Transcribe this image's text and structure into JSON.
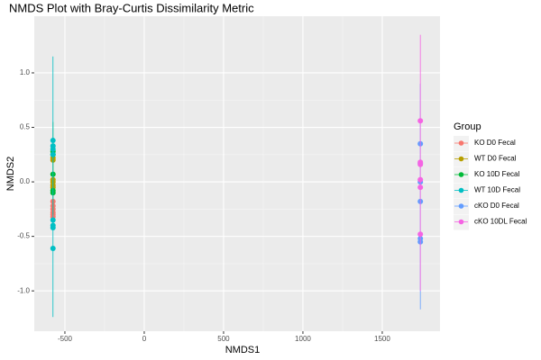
{
  "chart_data": {
    "type": "scatter",
    "title": "NMDS Plot with Bray-Curtis Dissimilarity Metric",
    "x_label": "NMDS1",
    "y_label": "NMDS2",
    "legend_title": "Group",
    "legend_position": "right",
    "grid": true,
    "xlim": [
      -693,
      1864
    ],
    "ylim": [
      -1.37,
      1.52
    ],
    "xticks": [
      -500,
      0,
      500,
      1000,
      1500
    ],
    "yticks": [
      {
        "value": -1,
        "label": "-1.0"
      },
      {
        "value": -0.5,
        "label": "-0.5"
      },
      {
        "value": 0,
        "label": "0.0"
      },
      {
        "value": 0.5,
        "label": "0.5"
      },
      {
        "value": 1,
        "label": "1.0"
      }
    ],
    "series": [
      {
        "name": "KO D0 Fecal",
        "color": "#F8766D",
        "x": [
          -575,
          -575,
          -575,
          -575,
          -575,
          -575
        ],
        "values": [
          -0.18,
          -0.22,
          -0.25,
          -0.28,
          -0.3,
          -0.32
        ],
        "ellipse_y": [
          -0.36,
          0.05
        ]
      },
      {
        "name": "WT D0 Fecal",
        "color": "#B79F00",
        "x": [
          -575,
          -575,
          -575,
          -575,
          -575,
          -575
        ],
        "values": [
          0.22,
          0.2,
          0.02,
          0,
          -0.03,
          -0.05
        ],
        "ellipse_y": [
          -0.1,
          0.3
        ]
      },
      {
        "name": "KO 10D Fecal",
        "color": "#00BA38",
        "x": [
          -575,
          -575,
          -575,
          -575,
          -575
        ],
        "values": [
          0.28,
          0.25,
          0.07,
          -0.08,
          -0.1
        ],
        "ellipse_y": [
          -0.3,
          0.55
        ]
      },
      {
        "name": "WT 10D Fecal",
        "color": "#00BFC4",
        "x": [
          -575,
          -575,
          -575,
          -575,
          -575,
          -575,
          -575,
          -575
        ],
        "values": [
          0.38,
          0.33,
          0.3,
          0.25,
          -0.35,
          -0.4,
          -0.42,
          -0.61
        ],
        "ellipse_y": [
          -1.24,
          1.15
        ]
      },
      {
        "name": "cKO D0 Fecal",
        "color": "#619CFF",
        "x": [
          1740,
          1740,
          1740,
          1740,
          1740,
          1740
        ],
        "values": [
          0.35,
          0.17,
          0,
          -0.18,
          -0.52,
          -0.55
        ],
        "ellipse_y": [
          -1.17,
          0.9
        ]
      },
      {
        "name": "cKO 10DL Fecal",
        "color": "#F564E3",
        "x": [
          1740,
          1740,
          1740,
          1740,
          1740,
          1740
        ],
        "values": [
          0.56,
          0.18,
          0.16,
          0.02,
          -0.05,
          -0.48
        ],
        "ellipse_y": [
          -1.0,
          1.35
        ]
      }
    ]
  }
}
